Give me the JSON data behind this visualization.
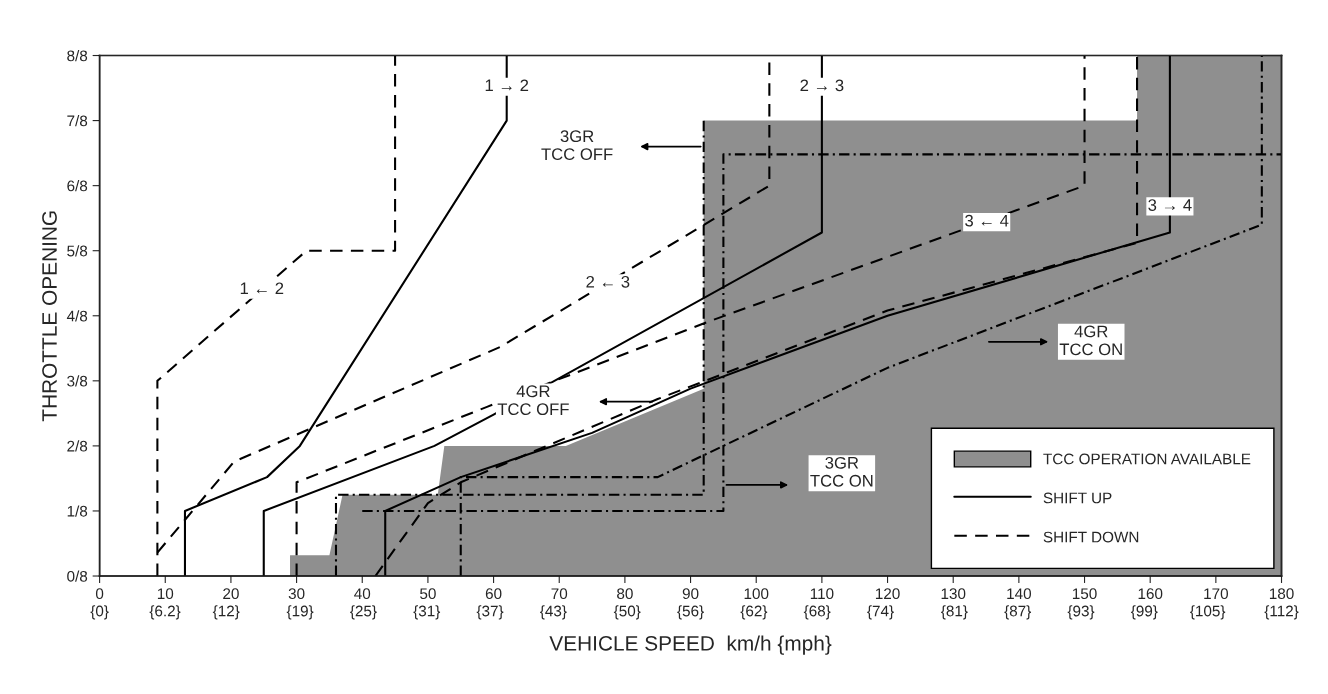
{
  "chart_data": {
    "type": "line",
    "xlabel": "VEHICLE SPEED  km/h {mph}",
    "ylabel": "THROTTLE OPENING",
    "xlim": [
      0,
      180
    ],
    "ylim": [
      0,
      1
    ],
    "xticks": [
      0,
      10,
      20,
      30,
      40,
      50,
      60,
      70,
      80,
      90,
      100,
      110,
      120,
      130,
      140,
      150,
      160,
      170,
      180
    ],
    "x2lim": [
      0,
      112
    ],
    "x2ticks": [
      {
        "value": 0,
        "label": "{0}"
      },
      {
        "value": 6.2,
        "label": "{6.2}"
      },
      {
        "value": 12,
        "label": "{12}"
      },
      {
        "value": 19,
        "label": "{19}"
      },
      {
        "value": 25,
        "label": "{25}"
      },
      {
        "value": 31,
        "label": "{31}"
      },
      {
        "value": 37,
        "label": "{37}"
      },
      {
        "value": 43,
        "label": "{43}"
      },
      {
        "value": 50,
        "label": "{50}"
      },
      {
        "value": 56,
        "label": "{56}"
      },
      {
        "value": 62,
        "label": "{62}"
      },
      {
        "value": 68,
        "label": "{68}"
      },
      {
        "value": 74,
        "label": "{74}"
      },
      {
        "value": 81,
        "label": "{81}"
      },
      {
        "value": 87,
        "label": "{87}"
      },
      {
        "value": 93,
        "label": "{93}"
      },
      {
        "value": 99,
        "label": "{99}"
      },
      {
        "value": 105,
        "label": "{105}"
      },
      {
        "value": 112,
        "label": "{112}"
      }
    ],
    "yticks": [
      {
        "value": 0,
        "label": "0/8"
      },
      {
        "value": 0.125,
        "label": "1/8"
      },
      {
        "value": 0.25,
        "label": "2/8"
      },
      {
        "value": 0.375,
        "label": "3/8"
      },
      {
        "value": 0.5,
        "label": "4/8"
      },
      {
        "value": 0.625,
        "label": "5/8"
      },
      {
        "value": 0.75,
        "label": "6/8"
      },
      {
        "value": 0.875,
        "label": "7/8"
      },
      {
        "value": 1,
        "label": "8/8"
      }
    ],
    "legend": "bottom right",
    "grid": false,
    "series": [
      {
        "type": "area",
        "name": "TCC OPERATION AVAILABLE",
        "color": "#8f8f8f",
        "x": [
          29,
          29,
          35,
          37,
          51.5,
          52.5,
          71,
          92,
          92,
          158,
          158,
          180
        ],
        "values": [
          0,
          0.04,
          0.04,
          0.156,
          0.156,
          0.25,
          0.25,
          0.36,
          0.875,
          0.875,
          1,
          1
        ]
      },
      {
        "name": "SHIFT UP",
        "color": "#000000",
        "line_style": "solid",
        "x": [
          13,
          13,
          25.5,
          30.5,
          62,
          62
        ],
        "values": [
          0,
          0.125,
          0.19,
          0.25,
          0.875,
          1
        ]
      },
      {
        "name": "SHIFT DOWN",
        "color": "#000000",
        "line_style": "dashed",
        "x": [
          8.8,
          8.8,
          31.5,
          45,
          45
        ],
        "values": [
          0,
          0.375,
          0.625,
          0.625,
          1
        ]
      },
      {
        "color": "#000000",
        "line_style": "solid",
        "x": [
          25,
          25,
          51,
          60,
          110,
          110
        ],
        "values": [
          0,
          0.125,
          0.25,
          0.31,
          0.66,
          1
        ]
      },
      {
        "color": "#000000",
        "line_style": "dashed",
        "x": [
          8.8,
          20.5,
          61,
          102,
          102
        ],
        "values": [
          0.045,
          0.22,
          0.44,
          0.75,
          1
        ]
      },
      {
        "color": "#000000",
        "line_style": "solid",
        "x": [
          43.5,
          43.5,
          55,
          75,
          90,
          120,
          163,
          163
        ],
        "values": [
          0,
          0.125,
          0.19,
          0.275,
          0.36,
          0.5,
          0.66,
          1
        ]
      },
      {
        "color": "#000000",
        "line_style": "dashed",
        "x": [
          30,
          30,
          59,
          93,
          150,
          150
        ],
        "values": [
          0,
          0.18,
          0.325,
          0.49,
          0.75,
          1
        ]
      },
      {
        "color": "#000000",
        "line_style": "dashed",
        "x": [
          42,
          50,
          55,
          85,
          120,
          158,
          158
        ],
        "values": [
          0,
          0.14,
          0.18,
          0.34,
          0.51,
          0.64,
          1
        ]
      },
      {
        "color": "#000000",
        "line_style": "dotted",
        "x": [
          55,
          55,
          85,
          120,
          177,
          177
        ],
        "values": [
          0,
          0.19,
          0.19,
          0.4,
          0.675,
          1
        ]
      },
      {
        "color": "#000000",
        "line_style": "dotted",
        "x": [
          36,
          36,
          92,
          92
        ],
        "values": [
          0,
          0.156,
          0.156,
          0.875
        ]
      },
      {
        "color": "#000000",
        "line_style": "dotted",
        "x": [
          40,
          95,
          95,
          180
        ],
        "values": [
          0.125,
          0.125,
          0.81,
          0.81
        ]
      }
    ],
    "annotations": [
      {
        "text": "1 → 2",
        "x": 62,
        "y": 0.94
      },
      {
        "text": "1 ← 2",
        "x": 24.7,
        "y": 0.55
      },
      {
        "text": "2 → 3",
        "x": 110,
        "y": 0.94
      },
      {
        "text": "2 ← 3",
        "x": 77.4,
        "y": 0.5625
      },
      {
        "text": "3 ← 4",
        "x": 135.1,
        "y": 0.68
      },
      {
        "text": "3 → 4",
        "x": 163,
        "y": 0.71
      },
      "3GR\nTCC OFF",
      "4GR\nTCC OFF",
      "3GR\nTCC ON",
      "4GR\nTCC ON"
    ]
  }
}
